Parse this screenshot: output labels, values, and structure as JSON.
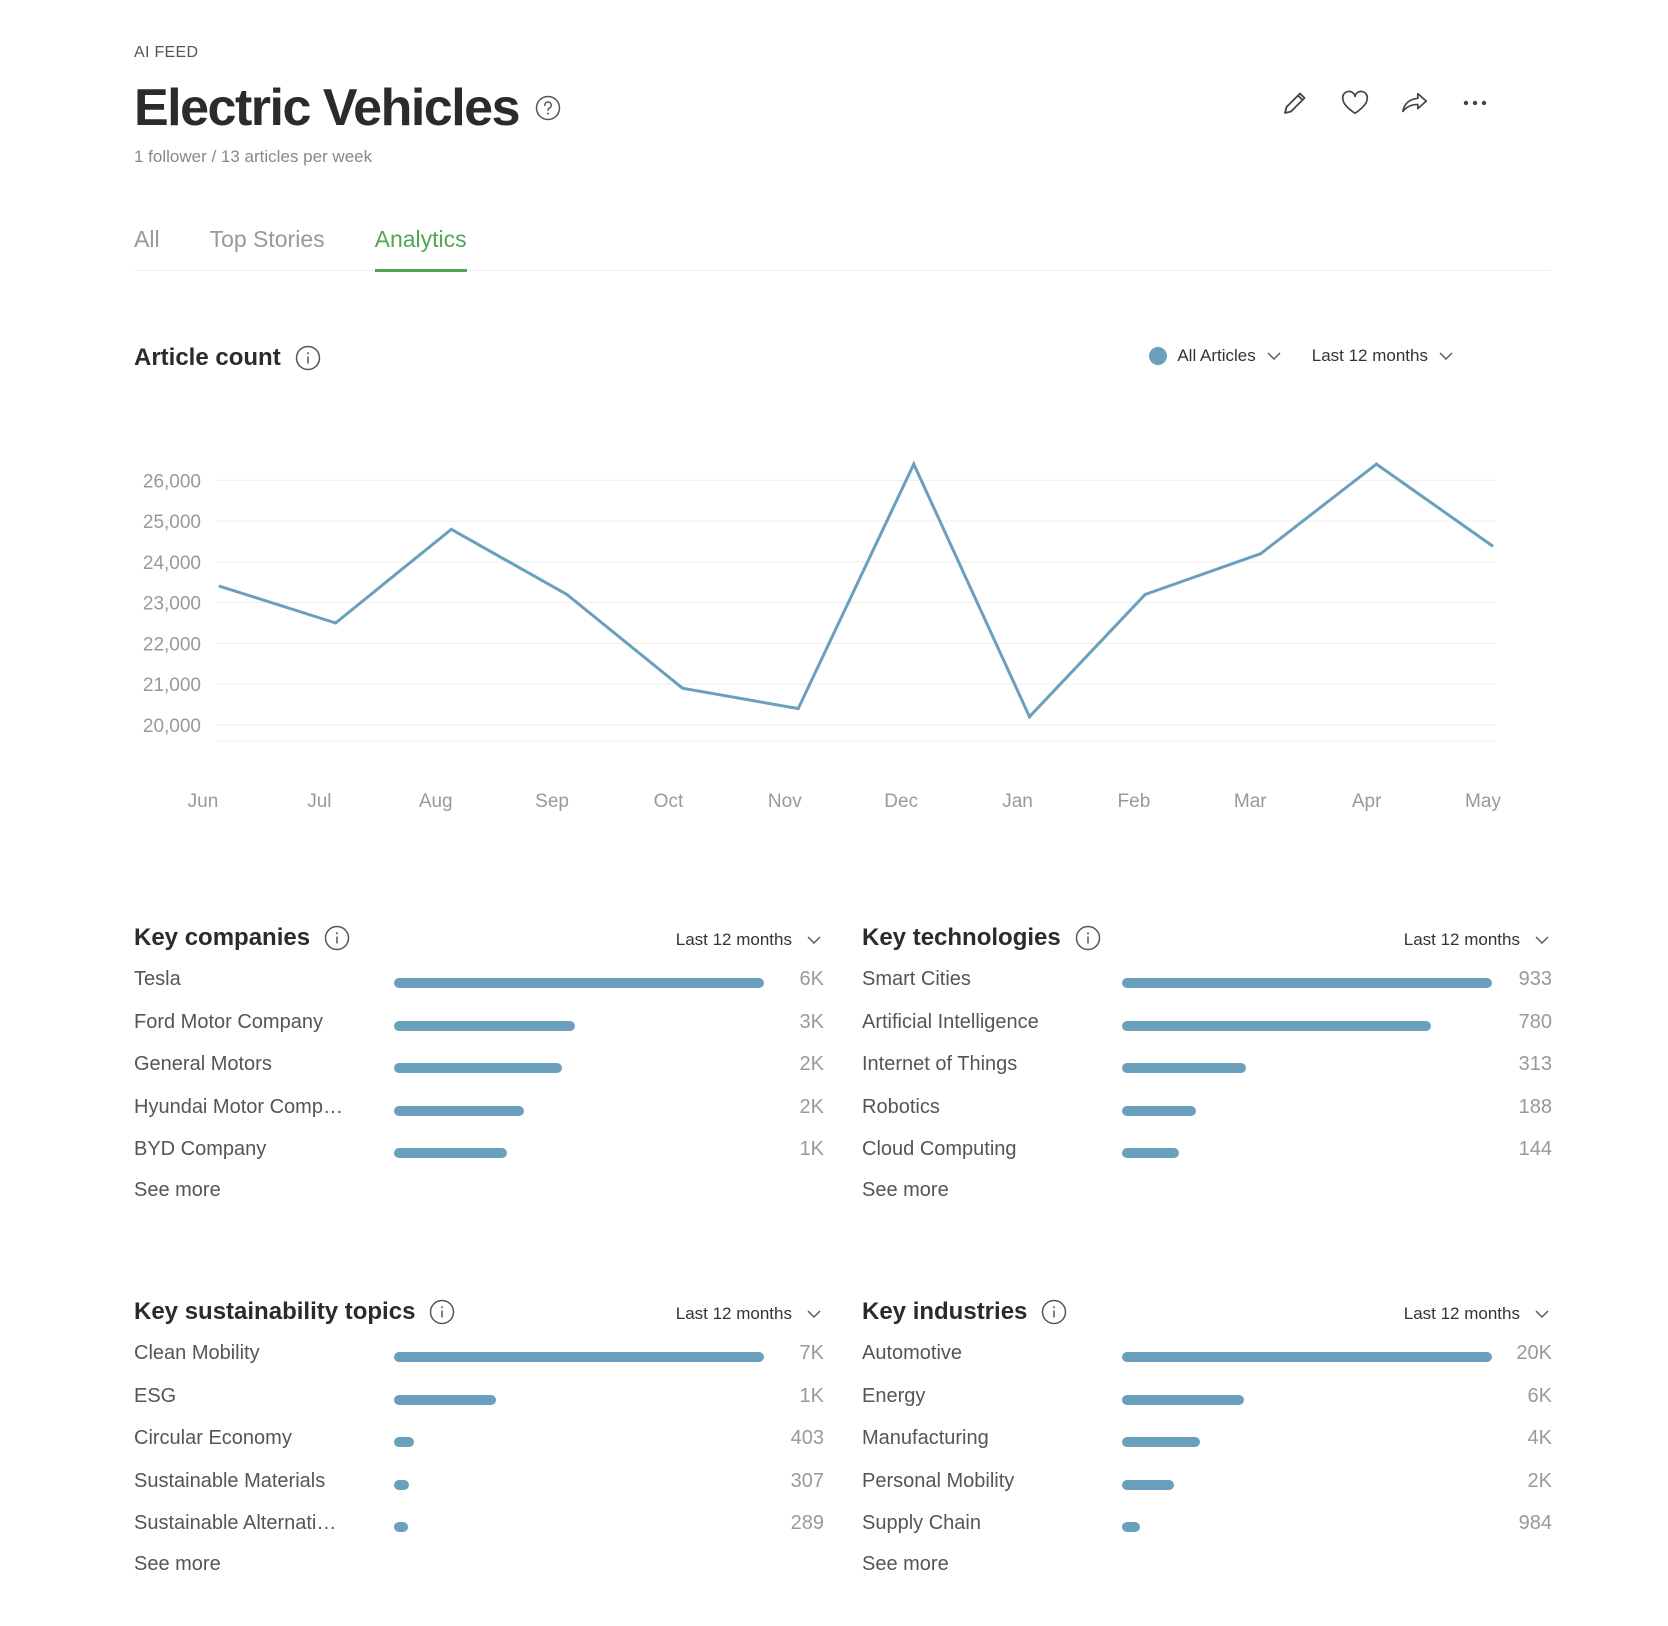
{
  "header": {
    "eyebrow": "AI FEED",
    "title": "Electric Vehicles",
    "subtitle": "1 follower / 13 articles per week",
    "actions": [
      "pencil-icon",
      "heart-icon",
      "share-icon",
      "more-icon"
    ]
  },
  "tabs": [
    {
      "label": "All",
      "active": false
    },
    {
      "label": "Top Stories",
      "active": false
    },
    {
      "label": "Analytics",
      "active": true
    }
  ],
  "colors": {
    "accent": "#52a552",
    "series": "#6b9fbe",
    "text": "#333333",
    "muted": "#999999"
  },
  "article_count": {
    "title": "Article count",
    "series_filter": "All Articles",
    "range_filter": "Last 12 months"
  },
  "chart_data": {
    "type": "line",
    "x": [
      "Jun",
      "Jul",
      "Aug",
      "Sep",
      "Oct",
      "Nov",
      "Dec",
      "Jan",
      "Feb",
      "Mar",
      "Apr",
      "May"
    ],
    "series": [
      {
        "name": "All Articles",
        "values": [
          23400,
          22500,
          24800,
          23200,
          20900,
          20400,
          26400,
          20200,
          23200,
          24200,
          26400,
          24400
        ]
      }
    ],
    "yticks": [
      "20,000",
      "21,000",
      "22,000",
      "23,000",
      "24,000",
      "25,000",
      "26,000"
    ],
    "ylim": [
      19800,
      26500
    ],
    "grid": true
  },
  "panels": [
    {
      "title": "Key companies",
      "filter": "Last 12 months",
      "items": [
        {
          "label": "Tesla",
          "value": "6K",
          "fraction": 1.0
        },
        {
          "label": "Ford Motor Company",
          "value": "3K",
          "fraction": 0.49
        },
        {
          "label": "General Motors",
          "value": "2K",
          "fraction": 0.455
        },
        {
          "label": "Hyundai Motor Comp…",
          "value": "2K",
          "fraction": 0.35
        },
        {
          "label": "BYD Company",
          "value": "1K",
          "fraction": 0.305
        }
      ],
      "see_more": "See more"
    },
    {
      "title": "Key technologies",
      "filter": "Last 12 months",
      "items": [
        {
          "label": "Smart Cities",
          "value": "933",
          "fraction": 1.0
        },
        {
          "label": "Artificial Intelligence",
          "value": "780",
          "fraction": 0.835
        },
        {
          "label": "Internet of Things",
          "value": "313",
          "fraction": 0.335
        },
        {
          "label": "Robotics",
          "value": "188",
          "fraction": 0.2
        },
        {
          "label": "Cloud Computing",
          "value": "144",
          "fraction": 0.155
        }
      ],
      "see_more": "See more"
    },
    {
      "title": "Key sustainability topics",
      "filter": "Last 12 months",
      "items": [
        {
          "label": "Clean Mobility",
          "value": "7K",
          "fraction": 1.0
        },
        {
          "label": "ESG",
          "value": "1K",
          "fraction": 0.275
        },
        {
          "label": "Circular Economy",
          "value": "403",
          "fraction": 0.055
        },
        {
          "label": "Sustainable Materials",
          "value": "307",
          "fraction": 0.04
        },
        {
          "label": "Sustainable Alternati…",
          "value": "289",
          "fraction": 0.038
        }
      ],
      "see_more": "See more"
    },
    {
      "title": "Key industries",
      "filter": "Last 12 months",
      "items": [
        {
          "label": "Automotive",
          "value": "20K",
          "fraction": 1.0
        },
        {
          "label": "Energy",
          "value": "6K",
          "fraction": 0.33
        },
        {
          "label": "Manufacturing",
          "value": "4K",
          "fraction": 0.21
        },
        {
          "label": "Personal Mobility",
          "value": "2K",
          "fraction": 0.14
        },
        {
          "label": "Supply Chain",
          "value": "984",
          "fraction": 0.048
        }
      ],
      "see_more": "See more"
    }
  ]
}
